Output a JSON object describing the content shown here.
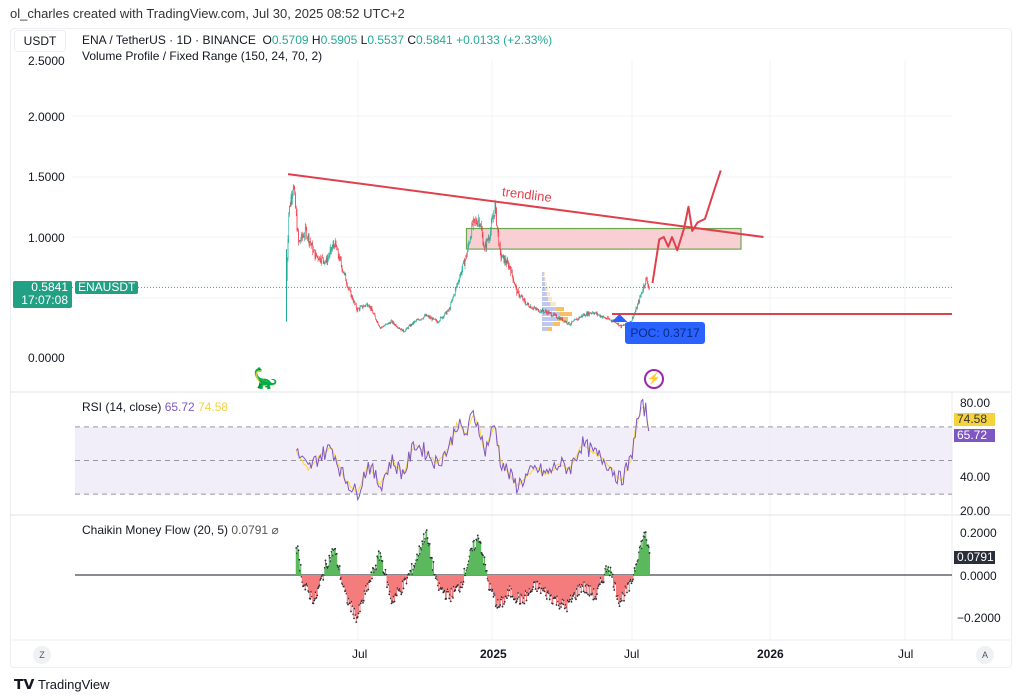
{
  "credit": "ol_charles created with TradingView.com, Jul 30, 2025 08:52 UTC+2",
  "currency_button": "USDT",
  "legend": {
    "symbol": "ENA / TetherUS · 1D · BINANCE",
    "o_label": "O",
    "o": "0.5709",
    "h_label": "H",
    "h": "0.5905",
    "l_label": "L",
    "l": "0.5537",
    "c_label": "C",
    "c": "0.5841",
    "change": "+0.0133 (+2.33%)",
    "indicator": "Volume Profile / Fixed Range (150, 24, 70, 2)"
  },
  "price_axis": [
    "2.5000",
    "2.0000",
    "1.5000",
    "1.0000",
    "0.0000"
  ],
  "last_price": {
    "value": "0.5841",
    "countdown": "17:07:08",
    "symbol": "ENAUSDT"
  },
  "time_axis": [
    "Jul",
    "2025",
    "Jul",
    "2026",
    "Jul"
  ],
  "axis_buttons": {
    "left": "Z",
    "right": "A"
  },
  "annotations": {
    "trendline_label": "trendline",
    "poc_label": "POC: 0.3717"
  },
  "rsi": {
    "title": "RSI (14, close)",
    "value": "65.72",
    "ma": "74.58",
    "axis": [
      "80.00",
      "40.00",
      "20.00"
    ],
    "upper": 70,
    "middle": 50,
    "lower": 30
  },
  "cmf": {
    "title": "Chaikin Money Flow (20, 5)",
    "value": "0.0791",
    "axis": [
      "0.2000",
      "0.0000",
      "−0.2000"
    ]
  },
  "footer": "TradingView",
  "colors": {
    "up": "#22ab94",
    "down": "#f23645",
    "drawing": "#e0404c",
    "zone_fill": "#f8d0d4",
    "zone_border": "#6aa84f",
    "poc": "#2962ff",
    "rsi": "#7e57c2",
    "rsi_ma": "#fdd835",
    "cmf_pos": "#5cb85c",
    "cmf_neg": "#f47c7c"
  },
  "chart_data": {
    "type": "candlestick",
    "price": [
      [
        "2024-04-02",
        0.65
      ],
      [
        "2024-04-05",
        1.2
      ],
      [
        "2024-04-11",
        1.45
      ],
      [
        "2024-04-18",
        0.95
      ],
      [
        "2024-04-28",
        1.05
      ],
      [
        "2024-05-10",
        0.85
      ],
      [
        "2024-05-25",
        0.8
      ],
      [
        "2024-06-05",
        0.95
      ],
      [
        "2024-06-15",
        0.75
      ],
      [
        "2024-06-25",
        0.55
      ],
      [
        "2024-07-05",
        0.4
      ],
      [
        "2024-07-20",
        0.45
      ],
      [
        "2024-08-05",
        0.25
      ],
      [
        "2024-08-20",
        0.3
      ],
      [
        "2024-09-05",
        0.22
      ],
      [
        "2024-09-20",
        0.3
      ],
      [
        "2024-10-05",
        0.35
      ],
      [
        "2024-10-20",
        0.3
      ],
      [
        "2024-11-05",
        0.4
      ],
      [
        "2024-11-15",
        0.6
      ],
      [
        "2024-11-28",
        0.85
      ],
      [
        "2024-12-06",
        1.1
      ],
      [
        "2024-12-15",
        1.15
      ],
      [
        "2024-12-22",
        0.9
      ],
      [
        "2024-12-30",
        1.05
      ],
      [
        "2025-01-05",
        1.25
      ],
      [
        "2025-01-12",
        0.85
      ],
      [
        "2025-01-25",
        0.75
      ],
      [
        "2025-02-03",
        0.55
      ],
      [
        "2025-02-15",
        0.45
      ],
      [
        "2025-03-01",
        0.4
      ],
      [
        "2025-03-15",
        0.38
      ],
      [
        "2025-04-01",
        0.33
      ],
      [
        "2025-04-15",
        0.28
      ],
      [
        "2025-05-01",
        0.35
      ],
      [
        "2025-05-15",
        0.38
      ],
      [
        "2025-06-01",
        0.33
      ],
      [
        "2025-06-15",
        0.3
      ],
      [
        "2025-06-22",
        0.26
      ],
      [
        "2025-07-05",
        0.3
      ],
      [
        "2025-07-12",
        0.4
      ],
      [
        "2025-07-20",
        0.55
      ],
      [
        "2025-07-25",
        0.65
      ],
      [
        "2025-07-30",
        0.5841
      ]
    ],
    "trendline": [
      [
        "2024-04-04",
        1.52
      ],
      [
        "2025-12-29",
        1.0
      ]
    ],
    "resistance_zone": {
      "from": "2024-11-28",
      "to": "2025-11-29",
      "low": 0.9,
      "high": 1.07
    },
    "support_line": {
      "from": "2025-06-10",
      "price": 0.3717
    },
    "projection": [
      [
        "2025-08-03",
        0.62
      ],
      [
        "2025-08-12",
        0.98
      ],
      [
        "2025-08-18",
        1.0
      ],
      [
        "2025-08-24",
        0.92
      ],
      [
        "2025-08-29",
        1.0
      ],
      [
        "2025-09-05",
        0.89
      ],
      [
        "2025-09-14",
        1.07
      ],
      [
        "2025-09-20",
        1.25
      ],
      [
        "2025-09-25",
        1.05
      ],
      [
        "2025-10-02",
        1.12
      ],
      [
        "2025-10-12",
        1.15
      ],
      [
        "2025-10-25",
        1.4
      ],
      [
        "2025-11-02",
        1.55
      ]
    ],
    "rsi_series": [
      [
        "2024-04-15",
        55
      ],
      [
        "2024-05-01",
        45
      ],
      [
        "2024-05-15",
        52
      ],
      [
        "2024-06-01",
        58
      ],
      [
        "2024-06-15",
        42
      ],
      [
        "2024-07-05",
        30
      ],
      [
        "2024-07-20",
        48
      ],
      [
        "2024-08-05",
        35
      ],
      [
        "2024-08-20",
        50
      ],
      [
        "2024-09-05",
        42
      ],
      [
        "2024-09-20",
        60
      ],
      [
        "2024-10-05",
        55
      ],
      [
        "2024-10-20",
        48
      ],
      [
        "2024-11-05",
        58
      ],
      [
        "2024-11-15",
        72
      ],
      [
        "2024-11-28",
        65
      ],
      [
        "2024-12-06",
        78
      ],
      [
        "2024-12-15",
        70
      ],
      [
        "2024-12-22",
        55
      ],
      [
        "2025-01-05",
        72
      ],
      [
        "2025-01-12",
        50
      ],
      [
        "2025-02-03",
        35
      ],
      [
        "2025-02-15",
        40
      ],
      [
        "2025-03-01",
        45
      ],
      [
        "2025-03-15",
        42
      ],
      [
        "2025-04-01",
        48
      ],
      [
        "2025-04-15",
        45
      ],
      [
        "2025-05-01",
        60
      ],
      [
        "2025-05-15",
        55
      ],
      [
        "2025-06-01",
        50
      ],
      [
        "2025-06-15",
        42
      ],
      [
        "2025-06-22",
        38
      ],
      [
        "2025-07-05",
        50
      ],
      [
        "2025-07-12",
        70
      ],
      [
        "2025-07-20",
        82
      ],
      [
        "2025-07-25",
        80
      ],
      [
        "2025-07-30",
        65.72
      ]
    ],
    "cmf_series": [
      [
        "2024-04-15",
        0.15
      ],
      [
        "2024-04-25",
        -0.05
      ],
      [
        "2024-05-10",
        -0.12
      ],
      [
        "2024-05-25",
        0.05
      ],
      [
        "2024-06-05",
        0.12
      ],
      [
        "2024-06-20",
        -0.1
      ],
      [
        "2024-07-05",
        -0.2
      ],
      [
        "2024-07-20",
        -0.05
      ],
      [
        "2024-08-05",
        0.1
      ],
      [
        "2024-08-20",
        -0.12
      ],
      [
        "2024-09-05",
        -0.05
      ],
      [
        "2024-09-20",
        0.05
      ],
      [
        "2024-10-05",
        0.2
      ],
      [
        "2024-10-20",
        -0.05
      ],
      [
        "2024-11-05",
        -0.1
      ],
      [
        "2024-11-20",
        -0.05
      ],
      [
        "2024-12-06",
        0.12
      ],
      [
        "2024-12-15",
        0.18
      ],
      [
        "2024-12-28",
        -0.05
      ],
      [
        "2025-01-10",
        -0.15
      ],
      [
        "2025-01-25",
        -0.08
      ],
      [
        "2025-02-10",
        -0.12
      ],
      [
        "2025-03-01",
        -0.05
      ],
      [
        "2025-03-20",
        -0.1
      ],
      [
        "2025-04-10",
        -0.15
      ],
      [
        "2025-05-01",
        -0.05
      ],
      [
        "2025-05-20",
        -0.1
      ],
      [
        "2025-06-05",
        0.05
      ],
      [
        "2025-06-20",
        -0.12
      ],
      [
        "2025-07-05",
        -0.05
      ],
      [
        "2025-07-15",
        0.1
      ],
      [
        "2025-07-25",
        0.2
      ],
      [
        "2025-07-30",
        0.0791
      ]
    ]
  }
}
